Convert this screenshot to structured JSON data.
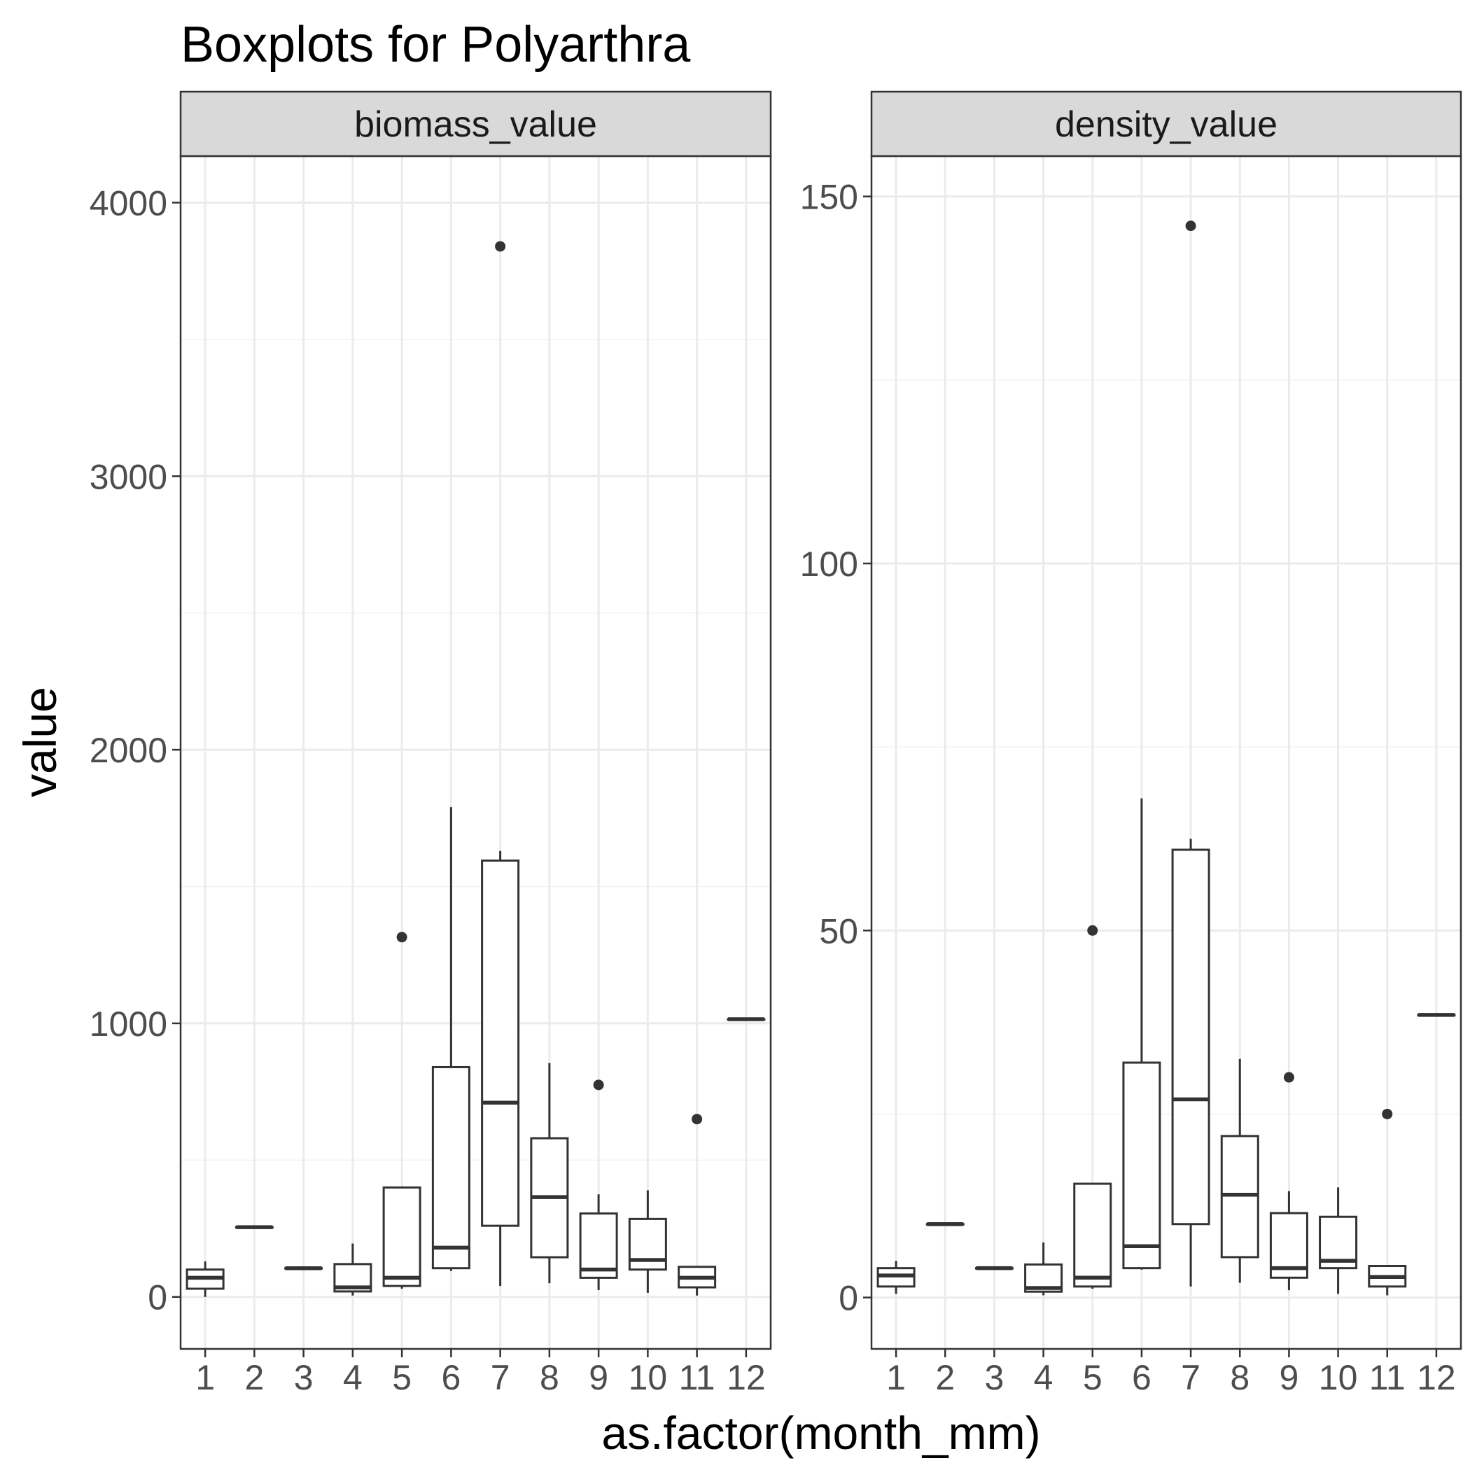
{
  "chart_data": {
    "type": "boxplot",
    "title": "Boxplots for Polyarthra",
    "xlabel": "as.factor(month_mm)",
    "ylabel": "value",
    "categories": [
      "1",
      "2",
      "3",
      "4",
      "5",
      "6",
      "7",
      "8",
      "9",
      "10",
      "11",
      "12"
    ],
    "grid": true,
    "theme": "black-and-white",
    "facets": [
      {
        "name": "biomass_value",
        "ylim": [
          -190,
          4170
        ],
        "yticks": [
          0,
          1000,
          2000,
          3000,
          4000
        ],
        "tick_labels": [
          "0",
          "1000",
          "2000",
          "3000",
          "4000"
        ],
        "boxes": [
          {
            "category": "1",
            "whisker_low": 0,
            "q1": 30,
            "median": 70,
            "q3": 100,
            "whisker_high": 130,
            "outliers": []
          },
          {
            "category": "2",
            "whisker_low": 255,
            "q1": 255,
            "median": 255,
            "q3": 255,
            "whisker_high": 255,
            "outliers": []
          },
          {
            "category": "3",
            "whisker_low": 105,
            "q1": 105,
            "median": 105,
            "q3": 105,
            "whisker_high": 105,
            "outliers": []
          },
          {
            "category": "4",
            "whisker_low": 5,
            "q1": 20,
            "median": 35,
            "q3": 120,
            "whisker_high": 195,
            "outliers": []
          },
          {
            "category": "5",
            "whisker_low": 30,
            "q1": 40,
            "median": 70,
            "q3": 400,
            "whisker_high": 400,
            "outliers": [
              1315
            ]
          },
          {
            "category": "6",
            "whisker_low": 95,
            "q1": 105,
            "median": 180,
            "q3": 840,
            "whisker_high": 1790,
            "outliers": []
          },
          {
            "category": "7",
            "whisker_low": 40,
            "q1": 260,
            "median": 710,
            "q3": 1595,
            "whisker_high": 1630,
            "outliers": [
              3840
            ]
          },
          {
            "category": "8",
            "whisker_low": 50,
            "q1": 145,
            "median": 365,
            "q3": 580,
            "whisker_high": 855,
            "outliers": []
          },
          {
            "category": "9",
            "whisker_low": 25,
            "q1": 70,
            "median": 100,
            "q3": 305,
            "whisker_high": 375,
            "outliers": [
              775
            ]
          },
          {
            "category": "10",
            "whisker_low": 15,
            "q1": 100,
            "median": 135,
            "q3": 285,
            "whisker_high": 390,
            "outliers": []
          },
          {
            "category": "11",
            "whisker_low": 5,
            "q1": 35,
            "median": 70,
            "q3": 110,
            "whisker_high": 110,
            "outliers": [
              650
            ]
          },
          {
            "category": "12",
            "whisker_low": 1015,
            "q1": 1015,
            "median": 1015,
            "q3": 1015,
            "whisker_high": 1015,
            "outliers": []
          }
        ]
      },
      {
        "name": "density_value",
        "ylim": [
          -7,
          155.5
        ],
        "yticks": [
          0,
          50,
          100,
          150
        ],
        "tick_labels": [
          "0",
          "50",
          "100",
          "150"
        ],
        "boxes": [
          {
            "category": "1",
            "whisker_low": 0.5,
            "q1": 1.5,
            "median": 3,
            "q3": 4,
            "whisker_high": 5,
            "outliers": []
          },
          {
            "category": "2",
            "whisker_low": 10,
            "q1": 10,
            "median": 10,
            "q3": 10,
            "whisker_high": 10,
            "outliers": []
          },
          {
            "category": "3",
            "whisker_low": 4,
            "q1": 4,
            "median": 4,
            "q3": 4,
            "whisker_high": 4,
            "outliers": []
          },
          {
            "category": "4",
            "whisker_low": 0.3,
            "q1": 0.8,
            "median": 1.3,
            "q3": 4.5,
            "whisker_high": 7.5,
            "outliers": []
          },
          {
            "category": "5",
            "whisker_low": 1.2,
            "q1": 1.5,
            "median": 2.7,
            "q3": 15.5,
            "whisker_high": 15.5,
            "outliers": [
              50
            ]
          },
          {
            "category": "6",
            "whisker_low": 3.8,
            "q1": 4,
            "median": 7,
            "q3": 32,
            "whisker_high": 68,
            "outliers": []
          },
          {
            "category": "7",
            "whisker_low": 1.5,
            "q1": 10,
            "median": 27,
            "q3": 61,
            "whisker_high": 62.5,
            "outliers": [
              146
            ]
          },
          {
            "category": "8",
            "whisker_low": 2,
            "q1": 5.5,
            "median": 14,
            "q3": 22,
            "whisker_high": 32.5,
            "outliers": []
          },
          {
            "category": "9",
            "whisker_low": 1,
            "q1": 2.7,
            "median": 4,
            "q3": 11.5,
            "whisker_high": 14.5,
            "outliers": [
              30
            ]
          },
          {
            "category": "10",
            "whisker_low": 0.5,
            "q1": 4,
            "median": 5,
            "q3": 11,
            "whisker_high": 15,
            "outliers": []
          },
          {
            "category": "11",
            "whisker_low": 0.3,
            "q1": 1.5,
            "median": 2.8,
            "q3": 4.3,
            "whisker_high": 4.3,
            "outliers": [
              25
            ]
          },
          {
            "category": "12",
            "whisker_low": 38.5,
            "q1": 38.5,
            "median": 38.5,
            "q3": 38.5,
            "whisker_high": 38.5,
            "outliers": []
          }
        ]
      }
    ],
    "colors": {
      "box_stroke": "#333333",
      "box_fill": "#ffffff",
      "outlier": "#333333",
      "grid_major": "#ebebeb",
      "grid_minor": "#f2f2f2",
      "panel_border": "#333333",
      "strip_fill": "#d9d9d9",
      "tick_label": "#4d4d4d"
    }
  }
}
